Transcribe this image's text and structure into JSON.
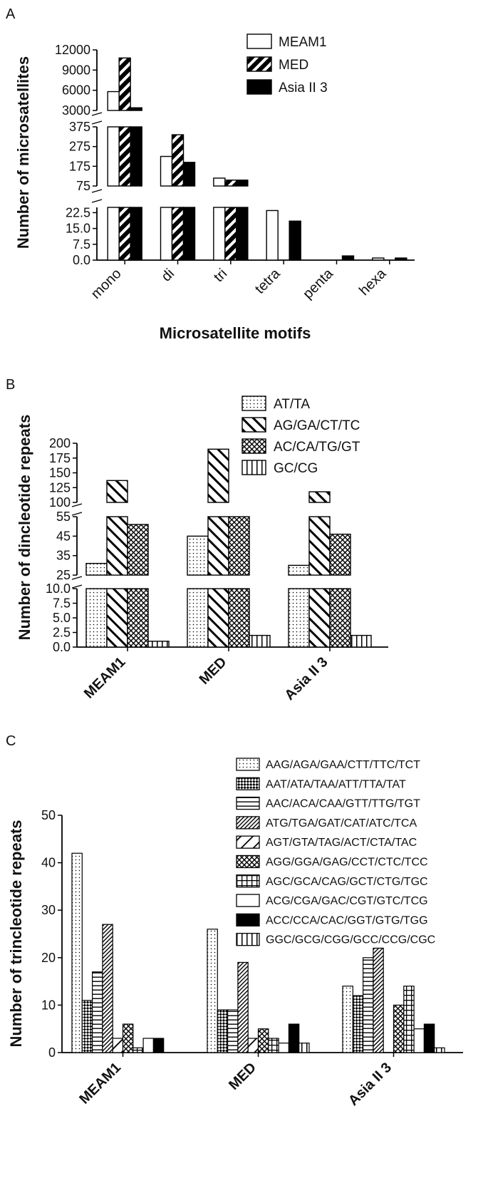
{
  "colors": {
    "ink": "#000000",
    "background": "#ffffff"
  },
  "panels": [
    {
      "letter": "A",
      "chart_data": {
        "type": "bar",
        "broken_axis": true,
        "categories": [
          "mono",
          "di",
          "tri",
          "tetra",
          "penta",
          "hexa"
        ],
        "xlabel": "Microsatellite motifs",
        "ylabel": "Number of microsatellites",
        "segments": [
          {
            "ylim": [
              0,
              25
            ],
            "ticks": [
              "0.0",
              "7.5",
              "15.0",
              "22.5"
            ]
          },
          {
            "ylim": [
              75,
              375
            ],
            "ticks": [
              "75",
              "175",
              "275",
              "375"
            ]
          },
          {
            "ylim": [
              3000,
              12000
            ],
            "ticks": [
              "3000",
              "6000",
              "9000",
              "12000"
            ]
          }
        ],
        "legend_position": "top-right",
        "series": [
          {
            "name": "MEAM1",
            "pattern": "empty",
            "values": [
              5800,
              225,
              115,
              23.5,
              0,
              1
            ]
          },
          {
            "name": "MED",
            "pattern": "diagonal-coarse",
            "values": [
              10800,
              335,
              105,
              0,
              0,
              0
            ]
          },
          {
            "name": "Asia II 3",
            "pattern": "solid",
            "values": [
              3400,
              195,
              105,
              18.5,
              2,
              1
            ]
          }
        ]
      }
    },
    {
      "letter": "B",
      "chart_data": {
        "type": "bar",
        "broken_axis": true,
        "categories": [
          "MEAM1",
          "MED",
          "Asia II 3"
        ],
        "xlabel": "",
        "ylabel": "Number of dincleotide repeats",
        "segments": [
          {
            "ylim": [
              0,
              10
            ],
            "ticks": [
              "0.0",
              "2.5",
              "5.0",
              "7.5",
              "10.0"
            ]
          },
          {
            "ylim": [
              25,
              55
            ],
            "ticks": [
              "25",
              "35",
              "45",
              "55"
            ]
          },
          {
            "ylim": [
              100,
              200
            ],
            "ticks": [
              "100",
              "125",
              "150",
              "175",
              "200"
            ]
          }
        ],
        "legend_position": "top-right",
        "series": [
          {
            "name": "AT/TA",
            "pattern": "dots",
            "values": [
              31,
              45,
              30
            ]
          },
          {
            "name": "AG/GA/CT/TC",
            "pattern": "backslash",
            "values": [
              137,
              190,
              118
            ]
          },
          {
            "name": "AC/CA/TG/GT",
            "pattern": "crosshatch",
            "values": [
              51,
              60,
              46
            ]
          },
          {
            "name": "GC/CG",
            "pattern": "vertical",
            "values": [
              1,
              2,
              2
            ]
          }
        ]
      }
    },
    {
      "letter": "C",
      "chart_data": {
        "type": "bar",
        "broken_axis": false,
        "categories": [
          "MEAM1",
          "MED",
          "Asia II 3"
        ],
        "xlabel": "",
        "ylabel": "Number of trincleotide repeats",
        "ylim": [
          0,
          50
        ],
        "ticks": [
          "0",
          "10",
          "20",
          "30",
          "40",
          "50"
        ],
        "legend_position": "top-right",
        "series": [
          {
            "name": "AAG/AGA/GAA/CTT/TTC/TCT",
            "pattern": "dots",
            "values": [
              42,
              26,
              14
            ]
          },
          {
            "name": "AAT/ATA/TAA/ATT/TTA/TAT",
            "pattern": "checker",
            "values": [
              11,
              9,
              12
            ]
          },
          {
            "name": "AAC/ACA/CAA/GTT/TTG/TGT",
            "pattern": "horizontal",
            "values": [
              17,
              9,
              20
            ]
          },
          {
            "name": "ATG/TGA/GAT/CAT/ATC/TCA",
            "pattern": "diagonal-fine",
            "values": [
              27,
              19,
              22
            ]
          },
          {
            "name": "AGT/GTA/TAG/ACT/CTA/TAC",
            "pattern": "diagonal-sparse",
            "values": [
              3,
              3,
              0
            ]
          },
          {
            "name": "AGG/GGA/GAG/CCT/CTC/TCC",
            "pattern": "crosshatch",
            "values": [
              6,
              5,
              10
            ]
          },
          {
            "name": "AGC/GCA/CAG/GCT/CTG/TGC",
            "pattern": "grid",
            "values": [
              1,
              3,
              14
            ]
          },
          {
            "name": "ACG/CGA/GAC/CGT/GTC/TCG",
            "pattern": "empty",
            "values": [
              3,
              2,
              5
            ]
          },
          {
            "name": "ACC/CCA/CAC/GGT/GTG/TGG",
            "pattern": "solid",
            "values": [
              3,
              6,
              6
            ]
          },
          {
            "name": "GGC/GCG/CGG/GCC/CCG/CGC",
            "pattern": "vertical",
            "values": [
              0,
              2,
              1
            ]
          }
        ]
      }
    }
  ]
}
